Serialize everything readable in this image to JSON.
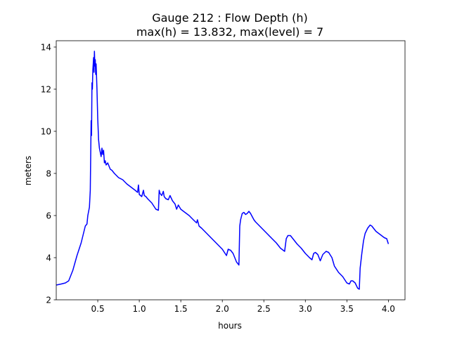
{
  "chart_data": {
    "type": "line",
    "title_line1": "Gauge 212 : Flow Depth (h)",
    "title_line2": "max(h) =  13.832,    max(level) = 7",
    "xlabel": "hours",
    "ylabel": "meters",
    "xlim": [
      0.0,
      4.2
    ],
    "ylim": [
      2.0,
      14.3
    ],
    "xticks": [
      0.5,
      1.0,
      1.5,
      2.0,
      2.5,
      3.0,
      3.5,
      4.0
    ],
    "xtick_labels": [
      "0.5",
      "1.0",
      "1.5",
      "2.0",
      "2.5",
      "3.0",
      "3.5",
      "4.0"
    ],
    "yticks": [
      2,
      4,
      6,
      8,
      10,
      12,
      14
    ],
    "ytick_labels": [
      "2",
      "4",
      "6",
      "8",
      "10",
      "12",
      "14"
    ],
    "grid": false,
    "line_color": "#0000ff",
    "series": [
      {
        "name": "",
        "x": [
          0.0,
          0.06,
          0.11,
          0.15,
          0.2,
          0.25,
          0.3,
          0.35,
          0.37,
          0.38,
          0.4,
          0.41,
          0.42,
          0.425,
          0.43,
          0.435,
          0.44,
          0.445,
          0.45,
          0.455,
          0.46,
          0.465,
          0.47,
          0.475,
          0.48,
          0.49,
          0.5,
          0.51,
          0.52,
          0.53,
          0.54,
          0.55,
          0.56,
          0.57,
          0.58,
          0.59,
          0.6,
          0.62,
          0.65,
          0.67,
          0.7,
          0.75,
          0.8,
          0.85,
          0.9,
          0.95,
          0.98,
          0.99,
          1.0,
          1.03,
          1.05,
          1.06,
          1.08,
          1.1,
          1.15,
          1.2,
          1.23,
          1.24,
          1.25,
          1.27,
          1.29,
          1.3,
          1.32,
          1.35,
          1.37,
          1.4,
          1.43,
          1.45,
          1.47,
          1.5,
          1.55,
          1.6,
          1.65,
          1.69,
          1.7,
          1.72,
          1.75,
          1.8,
          1.85,
          1.9,
          1.95,
          2.0,
          2.05,
          2.07,
          2.1,
          2.13,
          2.17,
          2.2,
          2.21,
          2.22,
          2.24,
          2.26,
          2.28,
          2.3,
          2.32,
          2.34,
          2.36,
          2.38,
          2.4,
          2.45,
          2.5,
          2.55,
          2.6,
          2.65,
          2.7,
          2.75,
          2.77,
          2.79,
          2.82,
          2.85,
          2.9,
          2.95,
          3.0,
          3.05,
          3.08,
          3.1,
          3.12,
          3.15,
          3.18,
          3.21,
          3.25,
          3.28,
          3.32,
          3.35,
          3.4,
          3.45,
          3.5,
          3.53,
          3.55,
          3.57,
          3.6,
          3.63,
          3.65,
          3.66,
          3.68,
          3.7,
          3.72,
          3.75,
          3.78,
          3.8,
          3.85,
          3.9,
          3.95,
          3.98,
          4.0
        ],
        "y": [
          2.7,
          2.75,
          2.8,
          2.9,
          3.4,
          4.1,
          4.7,
          5.5,
          5.6,
          6.0,
          6.4,
          7.2,
          10.5,
          9.8,
          12.3,
          12.0,
          12.9,
          13.2,
          13.5,
          12.8,
          13.8,
          13.1,
          13.4,
          12.7,
          13.2,
          12.0,
          10.6,
          9.6,
          9.2,
          9.0,
          8.8,
          9.2,
          8.9,
          9.1,
          8.5,
          8.6,
          8.4,
          8.5,
          8.2,
          8.15,
          8.0,
          7.8,
          7.7,
          7.5,
          7.35,
          7.2,
          7.1,
          7.45,
          7.0,
          6.9,
          7.2,
          6.95,
          6.9,
          6.8,
          6.6,
          6.3,
          6.25,
          7.2,
          7.05,
          6.95,
          7.15,
          6.9,
          6.8,
          6.75,
          6.95,
          6.7,
          6.55,
          6.3,
          6.5,
          6.3,
          6.15,
          6.0,
          5.8,
          5.65,
          5.8,
          5.5,
          5.4,
          5.2,
          5.0,
          4.8,
          4.6,
          4.4,
          4.1,
          4.4,
          4.35,
          4.2,
          3.8,
          3.65,
          5.5,
          5.8,
          6.1,
          6.15,
          6.05,
          6.1,
          6.2,
          6.1,
          5.95,
          5.8,
          5.7,
          5.5,
          5.3,
          5.1,
          4.9,
          4.7,
          4.45,
          4.3,
          4.9,
          5.05,
          5.05,
          4.9,
          4.65,
          4.45,
          4.2,
          4.0,
          3.9,
          4.2,
          4.25,
          4.15,
          3.85,
          4.15,
          4.3,
          4.25,
          4.0,
          3.6,
          3.3,
          3.1,
          2.8,
          2.75,
          2.9,
          2.9,
          2.8,
          2.55,
          2.5,
          3.5,
          4.2,
          4.8,
          5.15,
          5.4,
          5.55,
          5.5,
          5.25,
          5.1,
          4.95,
          4.9,
          4.65
        ]
      }
    ]
  }
}
